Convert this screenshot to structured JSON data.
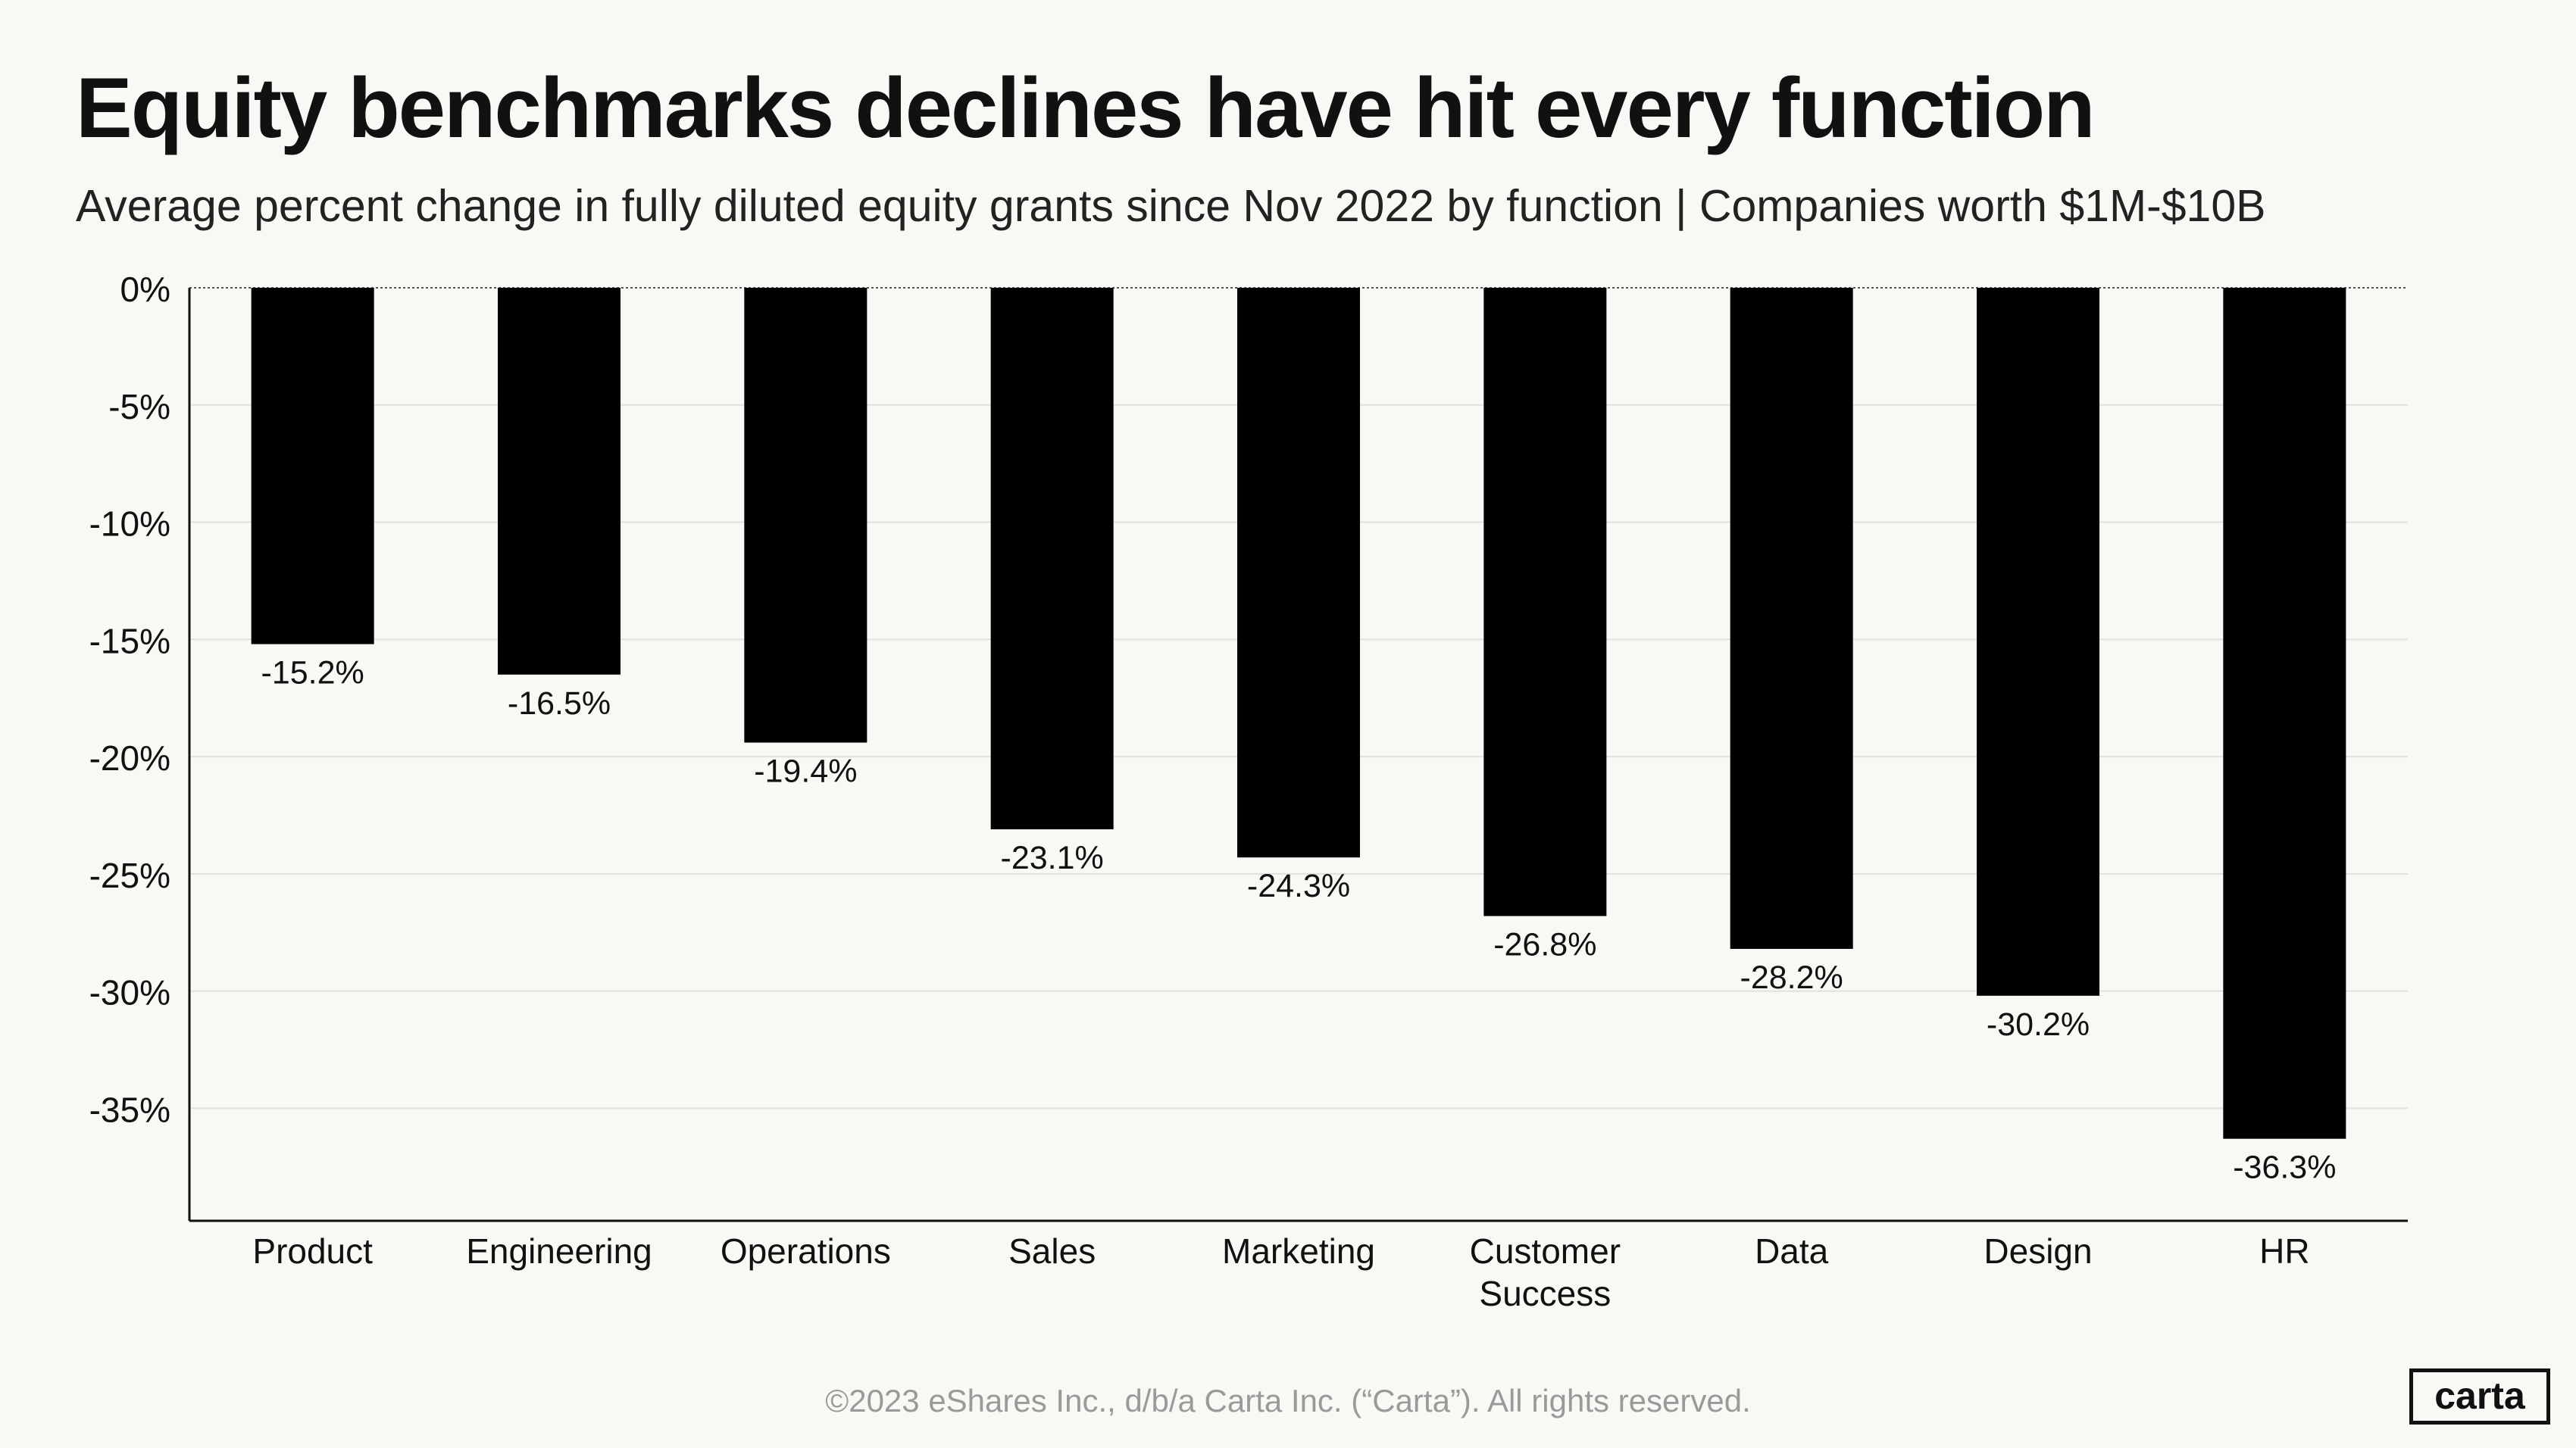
{
  "header": {
    "title": "Equity benchmarks declines have hit every function",
    "subtitle": "Average percent change in fully diluted equity grants since Nov 2022 by function | Companies worth $1M-$10B"
  },
  "chart_data": {
    "type": "bar",
    "title": "Equity benchmarks declines have hit every function",
    "subtitle": "Average percent change in fully diluted equity grants since Nov 2022 by function | Companies worth $1M-$10B",
    "xlabel": "",
    "ylabel": "",
    "categories": [
      "Product",
      "Engineering",
      "Operations",
      "Sales",
      "Marketing",
      "Customer Success",
      "Data",
      "Design",
      "HR"
    ],
    "category_lines": [
      [
        "Product"
      ],
      [
        "Engineering"
      ],
      [
        "Operations"
      ],
      [
        "Sales"
      ],
      [
        "Marketing"
      ],
      [
        "Customer",
        "Success"
      ],
      [
        "Data"
      ],
      [
        "Design"
      ],
      [
        "HR"
      ]
    ],
    "values": [
      -15.2,
      -16.5,
      -19.4,
      -23.1,
      -24.3,
      -26.8,
      -28.2,
      -30.2,
      -36.3
    ],
    "data_labels": [
      "-15.2%",
      "-16.5%",
      "-19.4%",
      "-23.1%",
      "-24.3%",
      "-26.8%",
      "-28.2%",
      "-30.2%",
      "-36.3%"
    ],
    "ylim": [
      -39.8,
      0
    ],
    "yticks": [
      0,
      -5,
      -10,
      -15,
      -20,
      -25,
      -30,
      -35
    ],
    "ytick_labels": [
      "0%",
      "-5%",
      "-10%",
      "-15%",
      "-20%",
      "-25%",
      "-30%",
      "-35%"
    ],
    "grid": true,
    "bar_color": "#000000",
    "grid_color": "#e2e0dc"
  },
  "footer": {
    "copyright": "©2023 eShares Inc., d/b/a Carta Inc. (“Carta”). All rights reserved.",
    "logo_text": "carta"
  }
}
